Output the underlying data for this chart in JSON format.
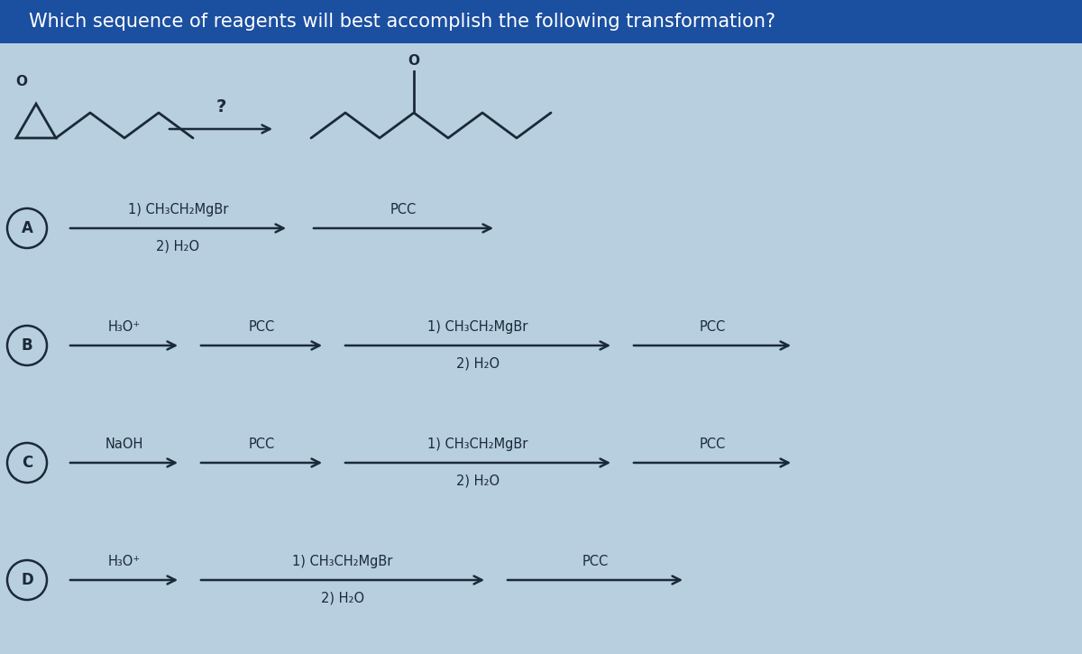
{
  "title": "Which sequence of reagents will best accomplish the following transformation?",
  "title_bg": "#1b4fa0",
  "title_color": "white",
  "bg_color": "#b8cfe0",
  "font_color": "#1a2a3a",
  "arrow_color": "#1a2a3a",
  "title_fontsize": 15,
  "label_fontsize": 10.5,
  "option_label_fontsize": 12,
  "options": [
    "A",
    "B",
    "C",
    "D"
  ],
  "fig_width": 12.0,
  "fig_height": 7.25,
  "xlim": [
    0,
    12
  ],
  "ylim": [
    0,
    7.25
  ]
}
